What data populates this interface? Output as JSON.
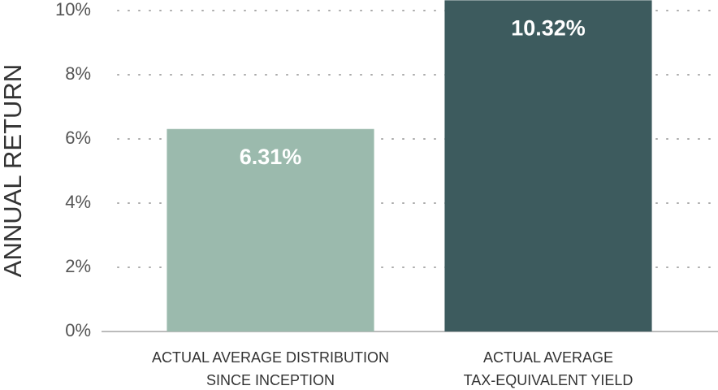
{
  "chart_data": {
    "type": "bar",
    "y_label": "ANNUAL RETURN",
    "categories": [
      [
        "ACTUAL AVERAGE DISTRIBUTION",
        "SINCE INCEPTION"
      ],
      [
        "ACTUAL AVERAGE",
        "TAX-EQUIVALENT YIELD"
      ]
    ],
    "values": [
      6.31,
      10.32
    ],
    "value_labels": [
      "6.31%",
      "10.32%"
    ],
    "colors": [
      "#9bbaad",
      "#3d5b5e"
    ],
    "ylim": [
      0,
      10
    ],
    "yticks": [
      {
        "value": 0,
        "label": "0%"
      },
      {
        "value": 2,
        "label": "2%"
      },
      {
        "value": 4,
        "label": "4%"
      },
      {
        "value": 6,
        "label": "6%"
      },
      {
        "value": 8,
        "label": "8%"
      },
      {
        "value": 10,
        "label": "10%"
      }
    ],
    "grid": true
  }
}
